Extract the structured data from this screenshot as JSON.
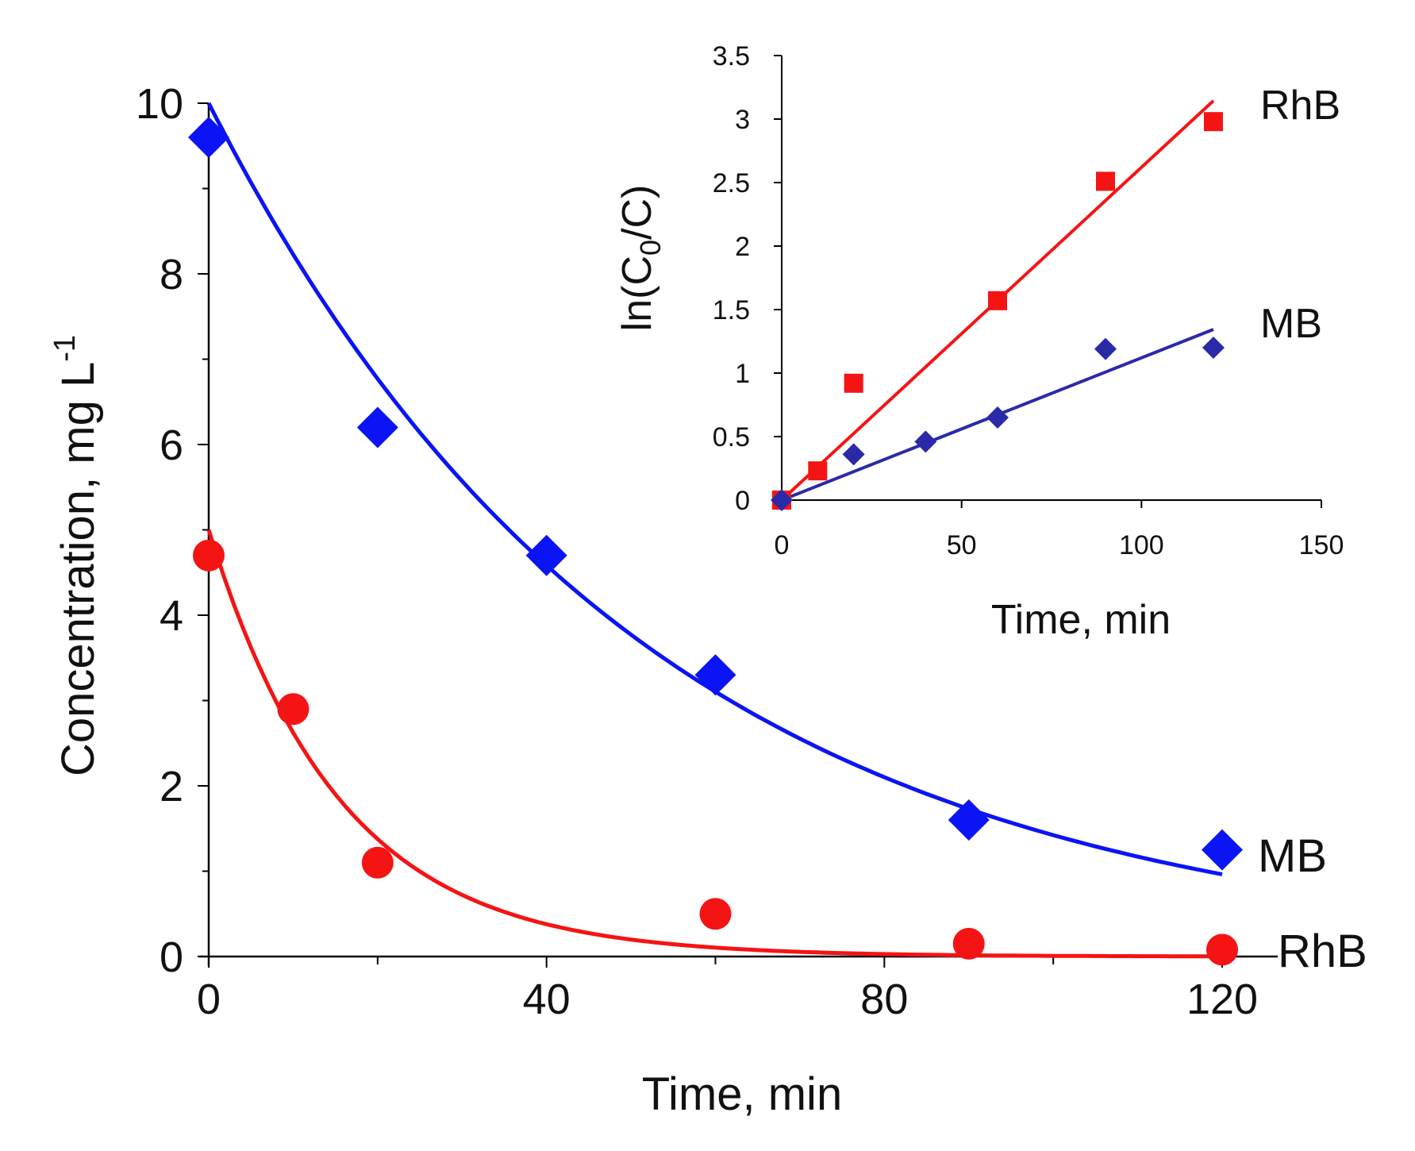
{
  "chart_data": [
    {
      "id": "main",
      "type": "scatter",
      "xlabel": "Time, min",
      "ylabel": "Concentration, mg L",
      "ylabel_superscript": "-1",
      "xlim": [
        0,
        130
      ],
      "ylim": [
        0,
        10
      ],
      "xticks": [
        0,
        40,
        80,
        120
      ],
      "yticks": [
        0,
        2,
        4,
        6,
        8,
        10
      ],
      "series": [
        {
          "name": "MB",
          "marker": "diamond",
          "color": "#0a14f5",
          "points": [
            [
              0,
              9.6
            ],
            [
              20,
              6.2
            ],
            [
              40,
              4.7
            ],
            [
              60,
              3.3
            ],
            [
              90,
              1.6
            ],
            [
              120,
              1.25
            ]
          ],
          "fit": {
            "model": "exponential",
            "c0": 10.0,
            "k": 0.0195
          }
        },
        {
          "name": "RhB",
          "marker": "circle",
          "color": "#f51414",
          "points": [
            [
              0,
              4.7
            ],
            [
              10,
              2.9
            ],
            [
              20,
              1.1
            ],
            [
              60,
              0.5
            ],
            [
              90,
              0.15
            ],
            [
              120,
              0.08
            ]
          ],
          "fit": {
            "model": "exponential",
            "c0": 5.0,
            "k": 0.0645
          }
        }
      ]
    },
    {
      "id": "inset",
      "type": "scatter",
      "xlabel": "Time, min",
      "ylabel_prefix": "ln(C",
      "ylabel_subscript": "0",
      "ylabel_suffix": "/C)",
      "xlim": [
        0,
        150
      ],
      "ylim": [
        0,
        3.5
      ],
      "xticks": [
        0,
        50,
        100,
        150
      ],
      "yticks": [
        0,
        0.5,
        1,
        1.5,
        2,
        2.5,
        3,
        3.5
      ],
      "ytick_labels": [
        "0",
        "0.5",
        "1",
        "1.5",
        "2",
        "2.5",
        "3",
        "3.5"
      ],
      "series": [
        {
          "name": "RhB",
          "marker": "square",
          "color": "#f51414",
          "points": [
            [
              0,
              0
            ],
            [
              10,
              0.23
            ],
            [
              20,
              0.92
            ],
            [
              60,
              1.57
            ],
            [
              90,
              2.51
            ],
            [
              120,
              2.98
            ]
          ],
          "fit": {
            "model": "linear",
            "slope": 0.0262,
            "intercept": 0,
            "xmax": 120
          }
        },
        {
          "name": "MB",
          "marker": "diamond",
          "color": "#2a2aa8",
          "points": [
            [
              0,
              0
            ],
            [
              20,
              0.36
            ],
            [
              40,
              0.46
            ],
            [
              60,
              0.65
            ],
            [
              90,
              1.19
            ],
            [
              120,
              1.2
            ]
          ],
          "fit": {
            "model": "linear",
            "slope": 0.0112,
            "intercept": 0,
            "xmax": 120
          }
        }
      ]
    }
  ]
}
